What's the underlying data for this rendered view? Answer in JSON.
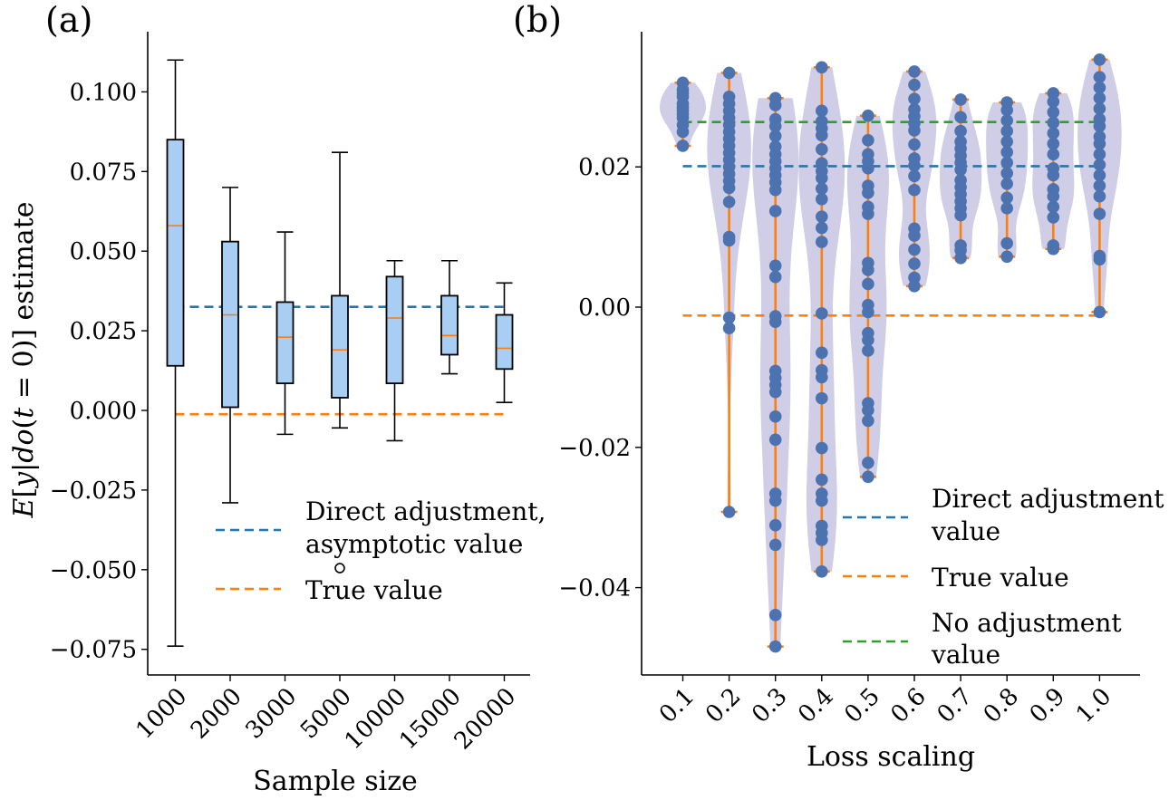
{
  "chart_data": [
    {
      "id": "a",
      "type": "box",
      "panel_label": "(a)",
      "xlabel": "Sample size",
      "ylabel": "E[y|do(t = 0)] estimate",
      "ylim": [
        -0.08,
        0.12
      ],
      "yticks": [
        {
          "value": 0.1,
          "label": "0.100"
        },
        {
          "value": 0.075,
          "label": "0.075"
        },
        {
          "value": 0.05,
          "label": "0.050"
        },
        {
          "value": 0.025,
          "label": "0.025"
        },
        {
          "value": 0.0,
          "label": "0.000"
        },
        {
          "value": -0.025,
          "label": "−0.025"
        },
        {
          "value": -0.05,
          "label": "−0.050"
        },
        {
          "value": -0.075,
          "label": "−0.075"
        }
      ],
      "categories": [
        "1000",
        "2000",
        "3000",
        "5000",
        "10000",
        "15000",
        "20000"
      ],
      "boxes": [
        {
          "whislo": -0.074,
          "q1": 0.014,
          "med": 0.058,
          "q3": 0.085,
          "whishi": 0.11
        },
        {
          "whislo": -0.029,
          "q1": 0.001,
          "med": 0.03,
          "q3": 0.053,
          "whishi": 0.07
        },
        {
          "whislo": -0.0075,
          "q1": 0.0085,
          "med": 0.023,
          "q3": 0.034,
          "whishi": 0.056
        },
        {
          "whislo": -0.0055,
          "q1": 0.004,
          "med": 0.019,
          "q3": 0.036,
          "whishi": 0.081
        },
        {
          "whislo": -0.0095,
          "q1": 0.0085,
          "med": 0.029,
          "q3": 0.042,
          "whishi": 0.047
        },
        {
          "whislo": 0.0115,
          "q1": 0.0175,
          "med": 0.0235,
          "q3": 0.036,
          "whishi": 0.047
        },
        {
          "whislo": 0.0025,
          "q1": 0.013,
          "med": 0.0195,
          "q3": 0.03,
          "whishi": 0.04
        }
      ],
      "outliers": [
        {
          "category_index": 3,
          "value": -0.0495
        }
      ],
      "reference_lines": [
        {
          "name": "Direct adjustment, asymptotic value",
          "value": 0.0325,
          "color": "#1f77b4"
        },
        {
          "name": "True value",
          "value": -0.0012,
          "color": "#ff7f0e"
        }
      ],
      "legend": {
        "position": "lower-right",
        "entries": [
          {
            "lines": [
              "Direct adjustment,",
              "asymptotic value"
            ],
            "color": "#1f77b4"
          },
          {
            "lines": [
              "True value"
            ],
            "color": "#ff7f0e"
          }
        ]
      }
    },
    {
      "id": "b",
      "type": "violin",
      "panel_label": "(b)",
      "xlabel": "Loss scaling",
      "ylabel": "",
      "ylim": [
        -0.052,
        0.038
      ],
      "yticks": [
        {
          "value": 0.02,
          "label": "0.02"
        },
        {
          "value": 0.0,
          "label": "0.00"
        },
        {
          "value": -0.02,
          "label": "−0.02"
        },
        {
          "value": -0.04,
          "label": "−0.04"
        }
      ],
      "categories": [
        "0.1",
        "0.2",
        "0.3",
        "0.4",
        "0.5",
        "0.6",
        "0.7",
        "0.8",
        "0.9",
        "1.0"
      ],
      "series": [
        {
          "name": "0.1",
          "min": 0.023,
          "max": 0.032,
          "values": [
            0.023,
            0.025,
            0.026,
            0.027,
            0.0275,
            0.028,
            0.0285,
            0.029,
            0.03,
            0.0305,
            0.031,
            0.032
          ]
        },
        {
          "name": "0.2",
          "min": -0.0292,
          "max": 0.0334,
          "values": [
            -0.0292,
            -0.003,
            -0.0015,
            0.0095,
            0.01,
            0.015,
            0.017,
            0.018,
            0.019,
            0.02,
            0.021,
            0.022,
            0.023,
            0.024,
            0.025,
            0.026,
            0.027,
            0.028,
            0.029,
            0.03,
            0.0334
          ]
        },
        {
          "name": "0.3",
          "min": -0.0484,
          "max": 0.0298,
          "values": [
            -0.0484,
            -0.0439,
            -0.0339,
            -0.0311,
            -0.0276,
            -0.0266,
            -0.0189,
            -0.0156,
            -0.0121,
            -0.0111,
            -0.0101,
            -0.0091,
            -0.0021,
            -0.0013,
            0.0043,
            0.0059,
            0.0137,
            0.0167,
            0.0178,
            0.0188,
            0.0198,
            0.0208,
            0.0218,
            0.0229,
            0.0244,
            0.0258,
            0.0268,
            0.0288,
            0.0298
          ]
        },
        {
          "name": "0.4",
          "min": -0.0377,
          "max": 0.0342,
          "values": [
            -0.0377,
            -0.0332,
            -0.0322,
            -0.0312,
            -0.0276,
            -0.0266,
            -0.0246,
            -0.0201,
            -0.013,
            -0.01,
            -0.009,
            -0.0065,
            -0.0009,
            0.0093,
            0.0113,
            0.0129,
            0.0154,
            0.0169,
            0.0184,
            0.0194,
            0.0205,
            0.0225,
            0.0245,
            0.0255,
            0.0265,
            0.028,
            0.0342
          ]
        },
        {
          "name": "0.5",
          "min": -0.0242,
          "max": 0.0273,
          "values": [
            -0.0242,
            -0.0222,
            -0.0162,
            -0.0147,
            -0.0137,
            -0.0062,
            -0.0047,
            -0.0037,
            -0.0007,
            0.0003,
            0.0033,
            0.0053,
            0.0063,
            0.0133,
            0.0143,
            0.0163,
            0.0173,
            0.0198,
            0.0208,
            0.0218,
            0.0238,
            0.0273
          ]
        },
        {
          "name": "0.6",
          "min": 0.003,
          "max": 0.0336,
          "values": [
            0.003,
            0.0042,
            0.0062,
            0.0082,
            0.0102,
            0.0112,
            0.0167,
            0.0187,
            0.0202,
            0.0212,
            0.0232,
            0.0252,
            0.0262,
            0.0272,
            0.0282,
            0.0297,
            0.0317,
            0.0336
          ]
        },
        {
          "name": "0.7",
          "min": 0.007,
          "max": 0.0296,
          "values": [
            0.007,
            0.0081,
            0.0088,
            0.0131,
            0.0141,
            0.0151,
            0.0161,
            0.0171,
            0.0181,
            0.0196,
            0.0206,
            0.0216,
            0.0226,
            0.0236,
            0.0251,
            0.0271,
            0.0296
          ]
        },
        {
          "name": "0.8",
          "min": 0.0072,
          "max": 0.0292,
          "values": [
            0.0072,
            0.0091,
            0.0141,
            0.0156,
            0.0176,
            0.0191,
            0.0206,
            0.0221,
            0.0236,
            0.0251,
            0.0266,
            0.0281,
            0.0292
          ]
        },
        {
          "name": "0.9",
          "min": 0.0083,
          "max": 0.0305,
          "values": [
            0.0083,
            0.0088,
            0.0128,
            0.0143,
            0.0158,
            0.0168,
            0.0188,
            0.0198,
            0.0218,
            0.0233,
            0.0248,
            0.0263,
            0.0278,
            0.0293,
            0.0305
          ]
        },
        {
          "name": "1.0",
          "min": -0.0007,
          "max": 0.0353,
          "values": [
            -0.0007,
            0.0068,
            0.0073,
            0.0133,
            0.0158,
            0.0173,
            0.0188,
            0.0203,
            0.0218,
            0.0233,
            0.0243,
            0.0258,
            0.0268,
            0.0283,
            0.0298,
            0.0313,
            0.0328,
            0.0353
          ]
        }
      ],
      "violin_widths": [
        0.42,
        0.4,
        0.42,
        0.42,
        0.38,
        0.4,
        0.38,
        0.38,
        0.38,
        0.4
      ],
      "reference_lines": [
        {
          "name": "Direct adjustment value",
          "value": 0.0201,
          "color": "#1f77b4"
        },
        {
          "name": "True value",
          "value": -0.0012,
          "color": "#ff7f0e"
        },
        {
          "name": "No adjustment value",
          "value": 0.0264,
          "color": "#2ca02c"
        }
      ],
      "legend": {
        "position": "lower-right",
        "entries": [
          {
            "lines": [
              "Direct adjustment",
              "value"
            ],
            "color": "#1f77b4"
          },
          {
            "lines": [
              "True value"
            ],
            "color": "#ff7f0e"
          },
          {
            "lines": [
              "No adjustment",
              "value"
            ],
            "color": "#2ca02c"
          }
        ]
      }
    }
  ]
}
